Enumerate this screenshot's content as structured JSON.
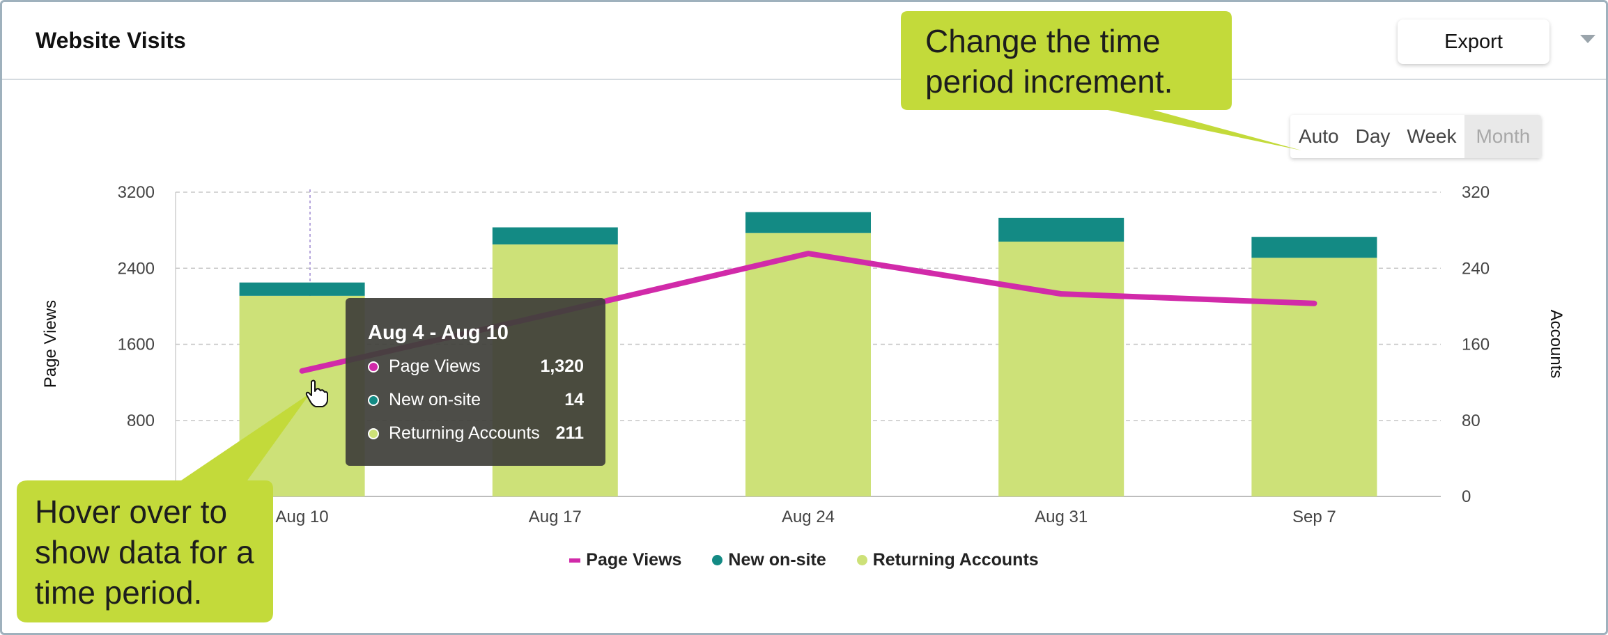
{
  "widget": {
    "title": "Website Visits",
    "export_label": "Export"
  },
  "period_options": [
    {
      "label": "Auto",
      "active": false
    },
    {
      "label": "Day",
      "active": false
    },
    {
      "label": "Week",
      "active": false
    },
    {
      "label": "Month",
      "active": true
    }
  ],
  "chart_data": {
    "type": "bar",
    "categories": [
      "Aug 10",
      "Aug 17",
      "Aug 24",
      "Aug 31",
      "Sep 7"
    ],
    "series": [
      {
        "name": "Returning Accounts",
        "type": "bar",
        "axis": "right",
        "stack": "accounts",
        "values": [
          211,
          265,
          277,
          268,
          251
        ],
        "color": "#cde178"
      },
      {
        "name": "New on-site",
        "type": "bar",
        "axis": "right",
        "stack": "accounts",
        "values": [
          14,
          18,
          22,
          25,
          22
        ],
        "color": "#138a84"
      },
      {
        "name": "Page Views",
        "type": "line",
        "axis": "left",
        "values": [
          1320,
          1930,
          2555,
          2130,
          2030
        ],
        "color": "#d12aa9"
      }
    ],
    "ylabel": "Page Views",
    "y2label": "Accounts",
    "ylim": [
      0,
      3200
    ],
    "y2lim": [
      0,
      320
    ],
    "yticks": [
      800,
      1600,
      2400,
      3200
    ],
    "y2ticks": [
      0,
      80,
      160,
      240,
      320
    ],
    "grid": true,
    "legend": "bottom-center"
  },
  "tooltip": {
    "title": "Aug 4 - Aug 10",
    "rows": [
      {
        "label": "Page Views",
        "value": "1,320",
        "color": "#d12aa9"
      },
      {
        "label": "New on-site",
        "value": "14",
        "color": "#138a84"
      },
      {
        "label": "Returning Accounts",
        "value": "211",
        "color": "#cde178"
      }
    ]
  },
  "callouts": {
    "time_period": "Change the time period increment.",
    "hover": "Hover over to show data for a time period.",
    "color": "#c3da3a"
  }
}
